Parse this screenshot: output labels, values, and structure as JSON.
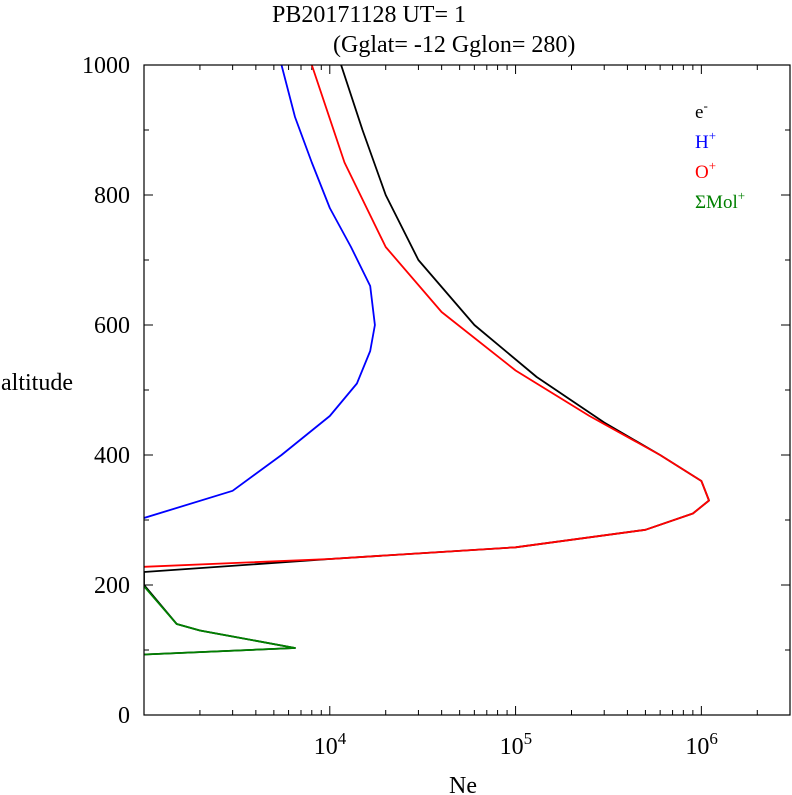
{
  "chart_data": {
    "type": "line",
    "title_line1": "PB20171128   UT=  1",
    "title_line2": "(Gglat= -12   Gglon=  280)",
    "xlabel": "Ne",
    "ylabel": "altitude",
    "x_scale": "log",
    "xlim": [
      1000,
      3000000
    ],
    "ylim": [
      0,
      1000
    ],
    "grid": false,
    "legend_position": "top-right",
    "y_ticks": [
      {
        "value": 0,
        "label": "0"
      },
      {
        "value": 200,
        "label": "200"
      },
      {
        "value": 400,
        "label": "400"
      },
      {
        "value": 600,
        "label": "600"
      },
      {
        "value": 800,
        "label": "800"
      },
      {
        "value": 1000,
        "label": "1000"
      }
    ],
    "x_ticks": [
      {
        "value": 10000,
        "base": "10",
        "exp": "4"
      },
      {
        "value": 100000,
        "base": "10",
        "exp": "5"
      },
      {
        "value": 1000000,
        "base": "10",
        "exp": "6"
      }
    ],
    "series": [
      {
        "key": "ne",
        "base": "e",
        "sup": "-",
        "color": "#000000",
        "points": [
          [
            1000,
            93
          ],
          [
            6500,
            103
          ],
          [
            2000,
            130
          ],
          [
            1500,
            140
          ],
          [
            1000,
            200
          ],
          [
            1000,
            220
          ],
          [
            10000,
            240
          ],
          [
            100000,
            258
          ],
          [
            500000,
            285
          ],
          [
            900000,
            310
          ],
          [
            1100000,
            330
          ],
          [
            1000000,
            360
          ],
          [
            600000,
            400
          ],
          [
            300000,
            450
          ],
          [
            130000,
            520
          ],
          [
            60000,
            600
          ],
          [
            30000,
            700
          ],
          [
            20000,
            800
          ],
          [
            15000,
            900
          ],
          [
            11500,
            1000
          ]
        ]
      },
      {
        "key": "h_plus",
        "base": "H",
        "sup": "+",
        "color": "#0000ff",
        "points": [
          [
            1000,
            303
          ],
          [
            3000,
            345
          ],
          [
            5500,
            400
          ],
          [
            10000,
            460
          ],
          [
            14000,
            510
          ],
          [
            16500,
            560
          ],
          [
            17500,
            600
          ],
          [
            16500,
            660
          ],
          [
            13000,
            720
          ],
          [
            10000,
            780
          ],
          [
            8000,
            850
          ],
          [
            6500,
            920
          ],
          [
            5500,
            1000
          ]
        ]
      },
      {
        "key": "o_plus",
        "base": "O",
        "sup": "+",
        "color": "#ff0000",
        "points": [
          [
            1000,
            228
          ],
          [
            10000,
            240
          ],
          [
            100000,
            258
          ],
          [
            500000,
            285
          ],
          [
            900000,
            310
          ],
          [
            1100000,
            330
          ],
          [
            1000000,
            360
          ],
          [
            600000,
            400
          ],
          [
            250000,
            460
          ],
          [
            100000,
            530
          ],
          [
            40000,
            620
          ],
          [
            20000,
            720
          ],
          [
            12000,
            850
          ],
          [
            8000,
            1000
          ]
        ]
      },
      {
        "key": "mol_plus",
        "base": "ΣMol",
        "sup": "+",
        "color": "#008000",
        "points": [
          [
            1000,
            93
          ],
          [
            6500,
            103
          ],
          [
            2000,
            130
          ],
          [
            1500,
            140
          ],
          [
            1000,
            198
          ]
        ]
      }
    ]
  }
}
